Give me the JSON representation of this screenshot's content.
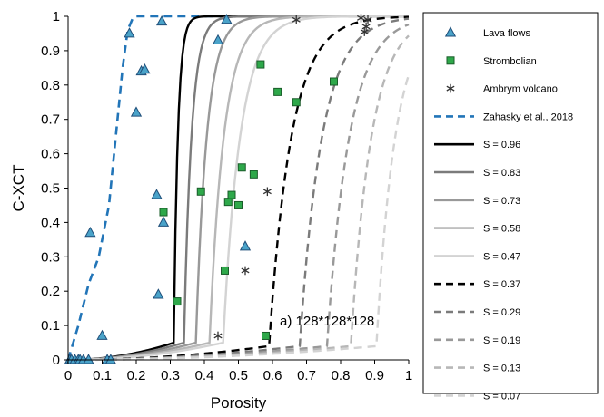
{
  "chart_data": {
    "type": "scatter",
    "xlabel": "Porosity",
    "ylabel": "C-XCT",
    "xlim": [
      0,
      1
    ],
    "ylim": [
      0,
      1
    ],
    "xticks": [
      "0",
      "0.1",
      "0.2",
      "0.3",
      "0.4",
      "0.5",
      "0.6",
      "0.7",
      "0.8",
      "0.9",
      "1"
    ],
    "yticks": [
      "0",
      "0.1",
      "0.2",
      "0.3",
      "0.4",
      "0.5",
      "0.6",
      "0.7",
      "0.8",
      "0.9",
      "1"
    ],
    "annotation": "a) 128*128*128",
    "legend_position": "right-outside",
    "scatter_series": [
      {
        "name": "Lava flows",
        "marker": "triangle",
        "color": "#4aa3c9",
        "edge": "#1f4e79",
        "points": [
          [
            0.005,
            0
          ],
          [
            0.01,
            0
          ],
          [
            0.02,
            0
          ],
          [
            0.03,
            0
          ],
          [
            0.035,
            0
          ],
          [
            0.045,
            0
          ],
          [
            0.06,
            0
          ],
          [
            0.065,
            0.37
          ],
          [
            0.1,
            0.07
          ],
          [
            0.115,
            0
          ],
          [
            0.125,
            0
          ],
          [
            0.18,
            0.95
          ],
          [
            0.2,
            0.72
          ],
          [
            0.215,
            0.84
          ],
          [
            0.225,
            0.845
          ],
          [
            0.26,
            0.48
          ],
          [
            0.265,
            0.19
          ],
          [
            0.275,
            0.985
          ],
          [
            0.28,
            0.4
          ],
          [
            0.44,
            0.93
          ],
          [
            0.465,
            0.99
          ],
          [
            0.52,
            0.33
          ]
        ]
      },
      {
        "name": "Strombolian",
        "marker": "square",
        "color": "#2ea84a",
        "edge": "#1a5c2a",
        "points": [
          [
            0.28,
            0.43
          ],
          [
            0.32,
            0.17
          ],
          [
            0.39,
            0.49
          ],
          [
            0.46,
            0.26
          ],
          [
            0.47,
            0.46
          ],
          [
            0.48,
            0.48
          ],
          [
            0.5,
            0.45
          ],
          [
            0.51,
            0.56
          ],
          [
            0.545,
            0.54
          ],
          [
            0.565,
            0.86
          ],
          [
            0.58,
            0.07
          ],
          [
            0.615,
            0.78
          ],
          [
            0.67,
            0.75
          ],
          [
            0.78,
            0.81
          ]
        ]
      },
      {
        "name": "Ambrym volcano",
        "marker": "asterisk",
        "color": "#333333",
        "points": [
          [
            0.44,
            0.07
          ],
          [
            0.52,
            0.26
          ],
          [
            0.585,
            0.49
          ],
          [
            0.67,
            0.99
          ],
          [
            0.86,
            0.995
          ],
          [
            0.87,
            0.955
          ],
          [
            0.875,
            0.97
          ],
          [
            0.88,
            0.99
          ]
        ]
      }
    ],
    "line_series": [
      {
        "name": "Zahasky et al., 2018",
        "color": "#2275b8",
        "dash": "dashed",
        "width": 2.6,
        "points": [
          [
            0,
            0
          ],
          [
            0.03,
            0.1
          ],
          [
            0.06,
            0.22
          ],
          [
            0.09,
            0.3
          ],
          [
            0.12,
            0.45
          ],
          [
            0.14,
            0.65
          ],
          [
            0.16,
            0.85
          ],
          [
            0.175,
            0.96
          ],
          [
            0.19,
            0.995
          ],
          [
            0.2,
            1
          ],
          [
            0.3,
            1
          ],
          [
            0.4,
            1
          ],
          [
            0.47,
            1
          ]
        ]
      },
      {
        "name": "S = 0.96",
        "color": "#000000",
        "dash": "solid",
        "width": 2.4,
        "phi_c": 0.31,
        "kappa": 0.012,
        "scale": 0.035,
        "low": 0.05
      },
      {
        "name": "S = 0.83",
        "color": "#7b7b7b",
        "dash": "solid",
        "width": 2.4,
        "phi_c": 0.34,
        "kappa": 0.022,
        "scale": 0.05,
        "low": 0.05
      },
      {
        "name": "S = 0.73",
        "color": "#999999",
        "dash": "solid",
        "width": 2.4,
        "phi_c": 0.375,
        "kappa": 0.032,
        "scale": 0.06,
        "low": 0.05
      },
      {
        "name": "S = 0.58",
        "color": "#b7b7b7",
        "dash": "solid",
        "width": 2.4,
        "phi_c": 0.415,
        "kappa": 0.042,
        "scale": 0.07,
        "low": 0.05
      },
      {
        "name": "S = 0.47",
        "color": "#d3d3d3",
        "dash": "solid",
        "width": 2.4,
        "phi_c": 0.455,
        "kappa": 0.05,
        "scale": 0.08,
        "low": 0.05
      },
      {
        "name": "S = 0.37",
        "color": "#000000",
        "dash": "dashed",
        "width": 2.4,
        "phi_c": 0.59,
        "kappa": 0.065,
        "scale": 0.05,
        "low": 0.04
      },
      {
        "name": "S = 0.29",
        "color": "#7b7b7b",
        "dash": "dashed",
        "width": 2.4,
        "phi_c": 0.68,
        "kappa": 0.065,
        "scale": 0.05,
        "low": 0.04
      },
      {
        "name": "S = 0.19",
        "color": "#999999",
        "dash": "dashed",
        "width": 2.4,
        "phi_c": 0.76,
        "kappa": 0.065,
        "scale": 0.05,
        "low": 0.04
      },
      {
        "name": "S = 0.13",
        "color": "#b7b7b7",
        "dash": "dashed",
        "width": 2.4,
        "phi_c": 0.83,
        "kappa": 0.06,
        "scale": 0.05,
        "low": 0.04
      },
      {
        "name": "S = 0.07",
        "color": "#d3d3d3",
        "dash": "dashed",
        "width": 2.4,
        "phi_c": 0.905,
        "kappa": 0.055,
        "scale": 0.05,
        "low": 0.04
      }
    ]
  }
}
